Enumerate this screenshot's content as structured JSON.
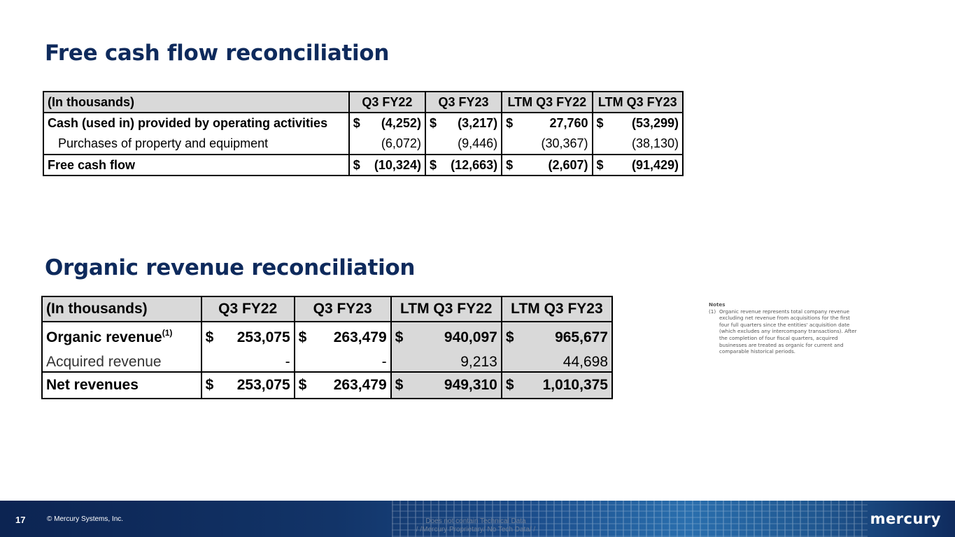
{
  "fcf": {
    "title": "Free cash flow reconciliation",
    "headers": [
      "(In thousands)",
      "Q3 FY22",
      "Q3 FY23",
      "LTM Q3 FY22",
      "LTM Q3 FY23"
    ],
    "rows": [
      {
        "label": "Cash (used in) provided by operating activities",
        "values": [
          [
            "$",
            "(4,252)"
          ],
          [
            "$",
            "(3,217)"
          ],
          [
            "$",
            "27,760"
          ],
          [
            "$",
            "(53,299)"
          ]
        ]
      },
      {
        "label": "Purchases of property and equipment",
        "values": [
          [
            "",
            "(6,072)"
          ],
          [
            "",
            "(9,446)"
          ],
          [
            "",
            "(30,367)"
          ],
          [
            "",
            "(38,130)"
          ]
        ]
      },
      {
        "label": "Free cash flow",
        "values": [
          [
            "$",
            "(10,324)"
          ],
          [
            "$",
            "(12,663)"
          ],
          [
            "$",
            "(2,607)"
          ],
          [
            "$",
            "(91,429)"
          ]
        ]
      }
    ]
  },
  "organic": {
    "title": "Organic revenue reconciliation",
    "headers": [
      "(In thousands)",
      "Q3 FY22",
      "Q3 FY23",
      "LTM Q3 FY22",
      "LTM Q3 FY23"
    ],
    "rows": [
      {
        "label": "Organic revenue",
        "footnote": "(1)",
        "values": [
          [
            "$",
            "253,075"
          ],
          [
            "$",
            "263,479"
          ],
          [
            "$",
            "940,097"
          ],
          [
            "$",
            "965,677"
          ]
        ]
      },
      {
        "label": "Acquired revenue",
        "values": [
          [
            "",
            "-"
          ],
          [
            "",
            "-"
          ],
          [
            "",
            "9,213"
          ],
          [
            "",
            "44,698"
          ]
        ]
      },
      {
        "label": "Net revenues",
        "values": [
          [
            "$",
            "253,075"
          ],
          [
            "$",
            "263,479"
          ],
          [
            "$",
            "949,310"
          ],
          [
            "$",
            "1,010,375"
          ]
        ]
      }
    ]
  },
  "notes": {
    "title": "Notes",
    "items": [
      {
        "num": "(1)",
        "text": "Organic revenue represents total company revenue excluding net revenue from acquisitions for the first four full quarters since the entities' acquisition date (which excludes any intercompany transactions). After the completion of four fiscal quarters, acquired businesses are treated as organic for current and comparable historical periods."
      }
    ]
  },
  "footer": {
    "page_number": "17",
    "copyright": "© Mercury Systems, Inc.",
    "classification_line1": "Does not contain Technical Data",
    "classification_line2": "/ /Mercury Proprietary/ No  Tech Data/ /",
    "logo_text": "mercury"
  },
  "colors": {
    "title": "#0e2a5c",
    "header_fill": "#d9d9d9",
    "footer_dark": "#0c2452",
    "footer_light": "#2a6fae"
  }
}
